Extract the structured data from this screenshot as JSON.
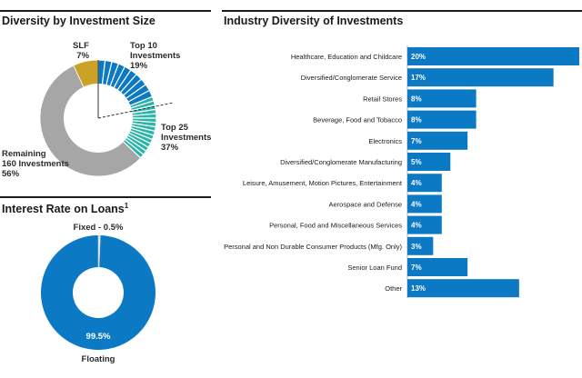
{
  "titles": {
    "size": "Diversity by Investment Size",
    "industry": "Industry Diversity of Investments",
    "rate": "Interest Rate on Loans",
    "rate_sup": "1"
  },
  "colors": {
    "gold": "#c9a227",
    "gray": "#a6a6a6",
    "blue": "#0b79c4",
    "teal": "#2bb5a8",
    "white": "#ffffff"
  },
  "chart_data": [
    {
      "type": "pie",
      "title": "Diversity by Investment Size",
      "slices": [
        {
          "name_lines": [
            "SLF",
            "7%"
          ],
          "value": 7
        },
        {
          "name_lines": [
            "Top 10",
            "Investments",
            "19%"
          ],
          "value": 19
        },
        {
          "name_lines": [
            "Top 25",
            "Investments",
            "37%"
          ],
          "value": 37
        },
        {
          "name_lines": [
            "Remaining",
            "160 Investments",
            "56%"
          ],
          "value": 56
        }
      ]
    },
    {
      "type": "pie",
      "title": "Interest Rate on Loans",
      "slices": [
        {
          "name": "Fixed - 0.5%",
          "value": 0.5
        },
        {
          "name": "Floating",
          "value": 99.5,
          "data_label": "99.5%"
        }
      ]
    },
    {
      "type": "bar",
      "orientation": "horizontal",
      "title": "Industry Diversity of Investments",
      "categories": [
        "Healthcare, Education and Childcare",
        "Diversified/Conglomerate Service",
        "Retail Stores",
        "Beverage, Food and Tobacco",
        "Electronics",
        "Diversified/Conglomerate Manufacturing",
        "Leisure, Amusement, Motion Pictures, Entertainment",
        "Aerospace and Defense",
        "Personal, Food and Miscellaneous Services",
        "Personal and Non Durable Consumer Products (Mfg. Only)",
        "Senior Loan Fund",
        "Other"
      ],
      "values": [
        20,
        17,
        8,
        8,
        7,
        5,
        4,
        4,
        4,
        3,
        7,
        13
      ],
      "value_labels": [
        "20%",
        "17%",
        "8%",
        "8%",
        "7%",
        "5%",
        "4%",
        "4%",
        "4%",
        "3%",
        "7%",
        "13%"
      ]
    }
  ]
}
